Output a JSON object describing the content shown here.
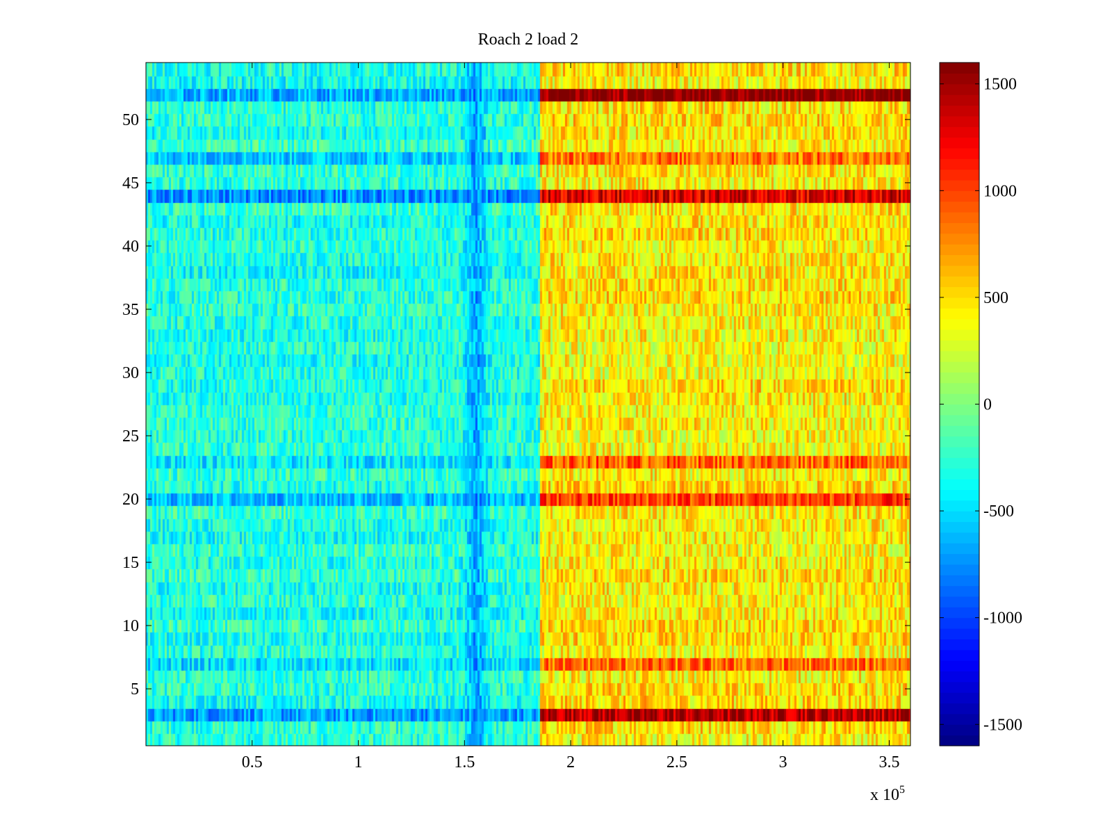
{
  "chart_data": {
    "type": "heatmap",
    "title": "Roach 2 load 2",
    "xlabel": "",
    "ylabel": "",
    "x_multiplier_label": "x 10",
    "x_multiplier_exponent": "5",
    "xlim": [
      0,
      3.6
    ],
    "ylim": [
      0.5,
      54.5
    ],
    "x_ticks": [
      0.5,
      1,
      1.5,
      2,
      2.5,
      3,
      3.5
    ],
    "x_tick_labels": [
      "0.5",
      "1",
      "1.5",
      "2",
      "2.5",
      "3",
      "3.5"
    ],
    "y_ticks": [
      5,
      10,
      15,
      20,
      25,
      30,
      35,
      40,
      45,
      50
    ],
    "y_tick_labels": [
      "5",
      "10",
      "15",
      "20",
      "25",
      "30",
      "35",
      "40",
      "45",
      "50"
    ],
    "rows": 54,
    "split_x": 1.85,
    "colorbar": {
      "clim": [
        -1600,
        1600
      ],
      "ticks": [
        -1500,
        -1000,
        -500,
        0,
        500,
        1000,
        1500
      ],
      "tick_labels": [
        "-1500",
        "-1000",
        "-500",
        "0",
        "500",
        "1000",
        "1500"
      ],
      "colormap": "jet"
    },
    "segment_means": {
      "left_typical": -300,
      "right_typical": 450,
      "left_dark_column_x": 1.55,
      "left_dark_column_value": -800
    },
    "row_profile": {
      "rows": [
        3,
        7,
        20,
        23,
        44,
        47,
        52
      ],
      "left_values": [
        -700,
        -500,
        -600,
        -450,
        -750,
        -550,
        -650
      ],
      "right_values": [
        1450,
        850,
        1000,
        900,
        1300,
        850,
        1600
      ]
    }
  }
}
